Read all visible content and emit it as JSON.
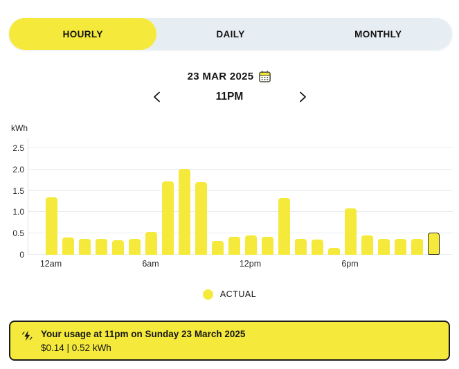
{
  "tabs": {
    "hourly": "HOURLY",
    "daily": "DAILY",
    "monthly": "MONTHLY"
  },
  "nav": {
    "date": "23 MAR 2025",
    "hour": "11PM"
  },
  "chart_data": {
    "type": "bar",
    "title": "",
    "ylabel": "kWh",
    "unit": "kWh",
    "x": [
      "12am",
      "1am",
      "2am",
      "3am",
      "4am",
      "5am",
      "6am",
      "7am",
      "8am",
      "9am",
      "10am",
      "11am",
      "12pm",
      "1pm",
      "2pm",
      "3pm",
      "4pm",
      "5pm",
      "6pm",
      "7pm",
      "8pm",
      "9pm",
      "10pm",
      "11pm"
    ],
    "values": [
      1.35,
      0.4,
      0.37,
      0.37,
      0.34,
      0.38,
      0.53,
      1.72,
      2.01,
      1.7,
      0.32,
      0.42,
      0.45,
      0.42,
      1.33,
      0.38,
      0.36,
      0.17,
      1.08,
      0.46,
      0.38,
      0.37,
      0.37,
      0.52
    ],
    "ylim": [
      0,
      2.5
    ],
    "yticks": [
      0,
      0.5,
      1.0,
      1.5,
      2.0,
      2.5
    ],
    "ytick_labels": [
      "0",
      "0.5",
      "1.0",
      "1.5",
      "2.0",
      "2.5"
    ],
    "xtick_indices": [
      0,
      6,
      12,
      18
    ],
    "xtick_labels": [
      "12am",
      "6am",
      "12pm",
      "6pm"
    ],
    "selected_index": 23,
    "grid": true,
    "bar_color": "#f5ea3b",
    "selected_border_color": "#32301b",
    "legend": [
      {
        "label": "ACTUAL",
        "color": "#f5ea3b"
      }
    ],
    "legend_position": "bottom-center"
  },
  "legend": {
    "actual": "ACTUAL"
  },
  "info_box": {
    "line1": "Your usage at 11pm on Sunday 23 March 2025",
    "line2": "$0.14 | 0.52 kWh"
  },
  "colors": {
    "accent_yellow": "#f5ea3b",
    "tab_background": "#e7eef3",
    "info_border": "#1b1b1b",
    "gridline": "#e9edf0"
  }
}
